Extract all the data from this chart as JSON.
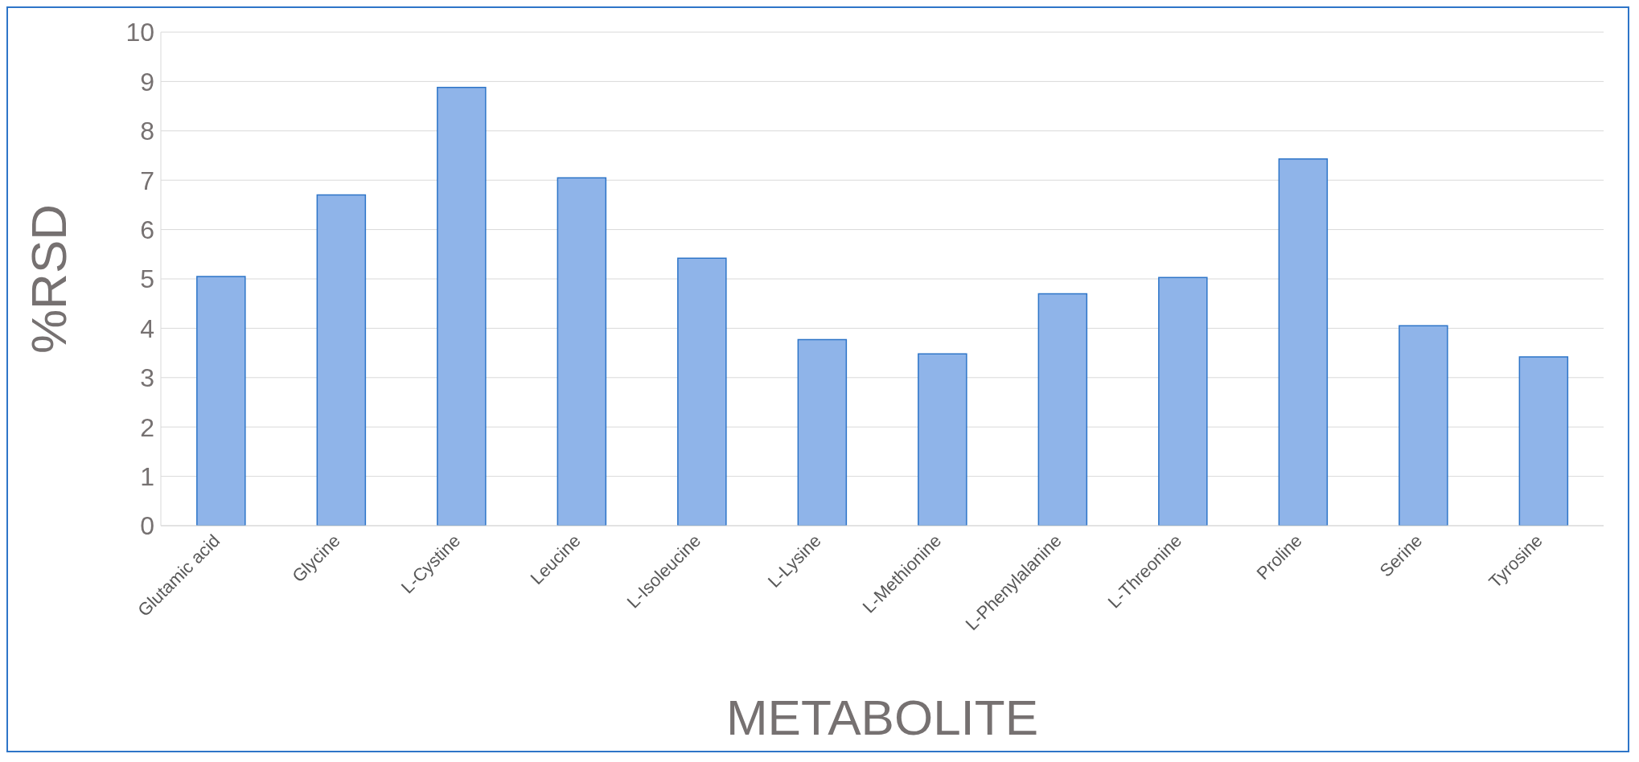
{
  "chart_data": {
    "type": "bar",
    "xlabel": "METABOLITE",
    "ylabel": "%RSD",
    "categories": [
      "Glutamic acid",
      "Glycine",
      "L-Cystine",
      "Leucine",
      "L-Isoleucine",
      "L-Lysine",
      "L-Methionine",
      "L-Phenylalanine",
      "L-Threonine",
      "Proline",
      "Serine",
      "Tyrosine"
    ],
    "values": [
      5.05,
      6.7,
      8.88,
      7.05,
      5.42,
      3.77,
      3.48,
      4.7,
      5.03,
      7.43,
      4.05,
      3.42
    ],
    "color": "#8fb4e9",
    "ylim": [
      0,
      10
    ],
    "yticks": [
      0,
      1,
      2,
      3,
      4,
      5,
      6,
      7,
      8,
      9,
      10
    ],
    "grid": "y"
  }
}
